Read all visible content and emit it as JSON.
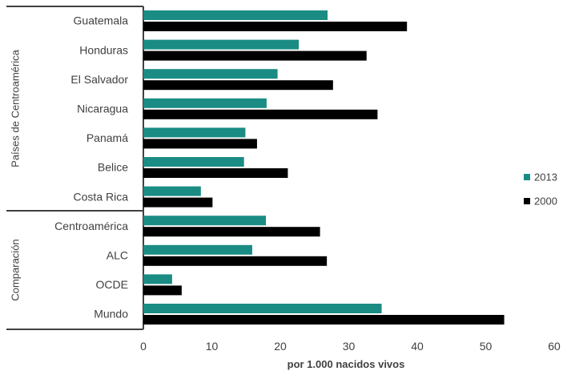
{
  "chart_data": {
    "type": "bar",
    "orientation": "horizontal",
    "categories": [
      "Guatemala",
      "Honduras",
      "El Salvador",
      "Nicaragua",
      "Panamá",
      "Belice",
      "Costa Rica",
      "Centroamérica",
      "ALC",
      "OCDE",
      "Mundo"
    ],
    "groups": [
      {
        "label": "Países de Centroamérica",
        "categories": [
          "Guatemala",
          "Honduras",
          "El Salvador",
          "Nicaragua",
          "Panamá",
          "Belice",
          "Costa Rica"
        ]
      },
      {
        "label": "Comparación",
        "categories": [
          "Centroamérica",
          "ALC",
          "OCDE",
          "Mundo"
        ]
      }
    ],
    "series": [
      {
        "name": "2013",
        "color": "#1a8c84",
        "values": [
          26.9,
          22.7,
          19.6,
          18.0,
          14.9,
          14.7,
          8.4,
          17.9,
          15.9,
          4.2,
          34.8
        ]
      },
      {
        "name": "2000",
        "color": "#000000",
        "values": [
          38.5,
          32.6,
          27.7,
          34.2,
          16.6,
          21.1,
          10.1,
          25.8,
          26.8,
          5.6,
          52.7
        ]
      }
    ],
    "xlabel": "por 1.000 nacidos vivos",
    "ylabel": "",
    "xlim": [
      0,
      60
    ],
    "xticks": [
      0,
      10,
      20,
      30,
      40,
      50,
      60
    ],
    "grid": false,
    "legend": "right"
  }
}
